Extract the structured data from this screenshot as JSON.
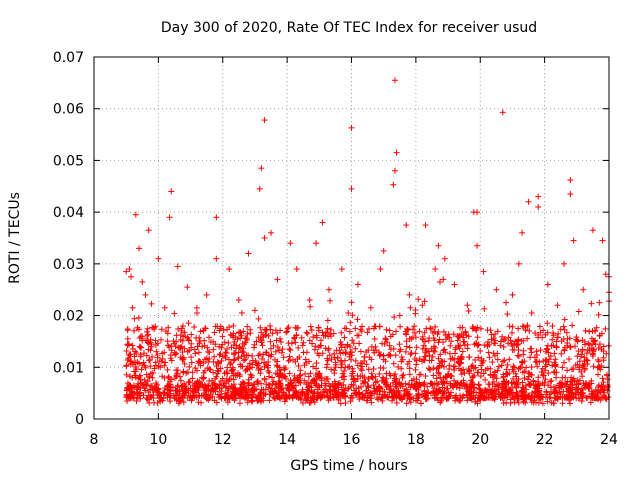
{
  "chart_data": {
    "type": "scatter",
    "title": "Day 300 of 2020, Rate Of TEC Index for receiver usud",
    "xlabel": "GPS time / hours",
    "ylabel": "ROTI / TECUs",
    "xlim": [
      8,
      24
    ],
    "ylim": [
      0,
      0.07
    ],
    "xticks": [
      8,
      10,
      12,
      14,
      16,
      18,
      20,
      22,
      24
    ],
    "xtick_labels": [
      "8",
      "10",
      "12",
      "14",
      "16",
      "18",
      "20",
      "22",
      "24"
    ],
    "yticks": [
      0,
      0.01,
      0.02,
      0.03,
      0.04,
      0.05,
      0.06,
      0.07
    ],
    "ytick_labels": [
      "0",
      "0.01",
      "0.02",
      "0.03",
      "0.04",
      "0.05",
      "0.06",
      "0.07"
    ],
    "grid": true,
    "marker": "plus",
    "color": "#ff0000",
    "x_range_of_data": [
      9.0,
      24.0
    ],
    "bulk_band": [
      0.004,
      0.018
    ],
    "series": [
      {
        "name": "ROTI",
        "points": [
          [
            17.35,
            0.0655
          ],
          [
            20.7,
            0.0593
          ],
          [
            13.3,
            0.0578
          ],
          [
            16.0,
            0.0563
          ],
          [
            17.4,
            0.0515
          ],
          [
            13.2,
            0.0485
          ],
          [
            17.35,
            0.048
          ],
          [
            17.3,
            0.0453
          ],
          [
            16.0,
            0.0445
          ],
          [
            22.8,
            0.0462
          ],
          [
            13.15,
            0.0445
          ],
          [
            22.8,
            0.0435
          ],
          [
            10.4,
            0.044
          ],
          [
            21.8,
            0.043
          ],
          [
            21.8,
            0.041
          ],
          [
            21.5,
            0.042
          ],
          [
            19.8,
            0.04
          ],
          [
            19.9,
            0.04
          ],
          [
            10.35,
            0.039
          ],
          [
            11.8,
            0.039
          ],
          [
            9.3,
            0.0395
          ],
          [
            15.1,
            0.038
          ],
          [
            17.7,
            0.0375
          ],
          [
            18.3,
            0.0375
          ],
          [
            23.5,
            0.0365
          ],
          [
            21.3,
            0.036
          ],
          [
            13.5,
            0.036
          ],
          [
            9.7,
            0.0365
          ],
          [
            13.3,
            0.035
          ],
          [
            14.1,
            0.034
          ],
          [
            14.9,
            0.034
          ],
          [
            18.7,
            0.0335
          ],
          [
            19.9,
            0.0335
          ],
          [
            22.9,
            0.0345
          ],
          [
            23.8,
            0.0345
          ],
          [
            9.4,
            0.033
          ],
          [
            10.0,
            0.031
          ],
          [
            11.8,
            0.031
          ],
          [
            12.8,
            0.032
          ],
          [
            17.0,
            0.0325
          ],
          [
            18.9,
            0.031
          ],
          [
            21.2,
            0.03
          ],
          [
            22.6,
            0.03
          ],
          [
            10.6,
            0.0295
          ],
          [
            9.1,
            0.029
          ],
          [
            12.2,
            0.029
          ],
          [
            14.3,
            0.029
          ],
          [
            15.7,
            0.029
          ],
          [
            16.9,
            0.029
          ],
          [
            18.6,
            0.029
          ],
          [
            20.1,
            0.0285
          ],
          [
            23.9,
            0.028
          ],
          [
            24.0,
            0.0275
          ],
          [
            19.2,
            0.026
          ],
          [
            20.5,
            0.025
          ],
          [
            10.9,
            0.0255
          ],
          [
            16.2,
            0.026
          ],
          [
            22.1,
            0.026
          ],
          [
            13.7,
            0.027
          ],
          [
            9.6,
            0.024
          ],
          [
            11.5,
            0.024
          ],
          [
            15.3,
            0.025
          ],
          [
            17.8,
            0.024
          ],
          [
            21.0,
            0.024
          ],
          [
            23.2,
            0.025
          ],
          [
            14.7,
            0.023
          ],
          [
            12.5,
            0.023
          ],
          [
            19.6,
            0.022
          ],
          [
            20.8,
            0.0225
          ],
          [
            22.4,
            0.022
          ],
          [
            9.2,
            0.0215
          ],
          [
            16.6,
            0.0215
          ],
          [
            18.2,
            0.022
          ],
          [
            23.7,
            0.0225
          ],
          [
            10.2,
            0.0215
          ],
          [
            13.0,
            0.021
          ],
          [
            15.9,
            0.0205
          ],
          [
            17.5,
            0.02
          ],
          [
            11.2,
            0.0205
          ],
          [
            21.6,
            0.0205
          ],
          [
            24.0,
            0.0245
          ],
          [
            24.0,
            0.0228
          ],
          [
            9.0,
            0.0285
          ],
          [
            9.15,
            0.0275
          ],
          [
            9.5,
            0.0265
          ],
          [
            18.75,
            0.0265
          ],
          [
            18.85,
            0.027
          ]
        ]
      }
    ]
  }
}
